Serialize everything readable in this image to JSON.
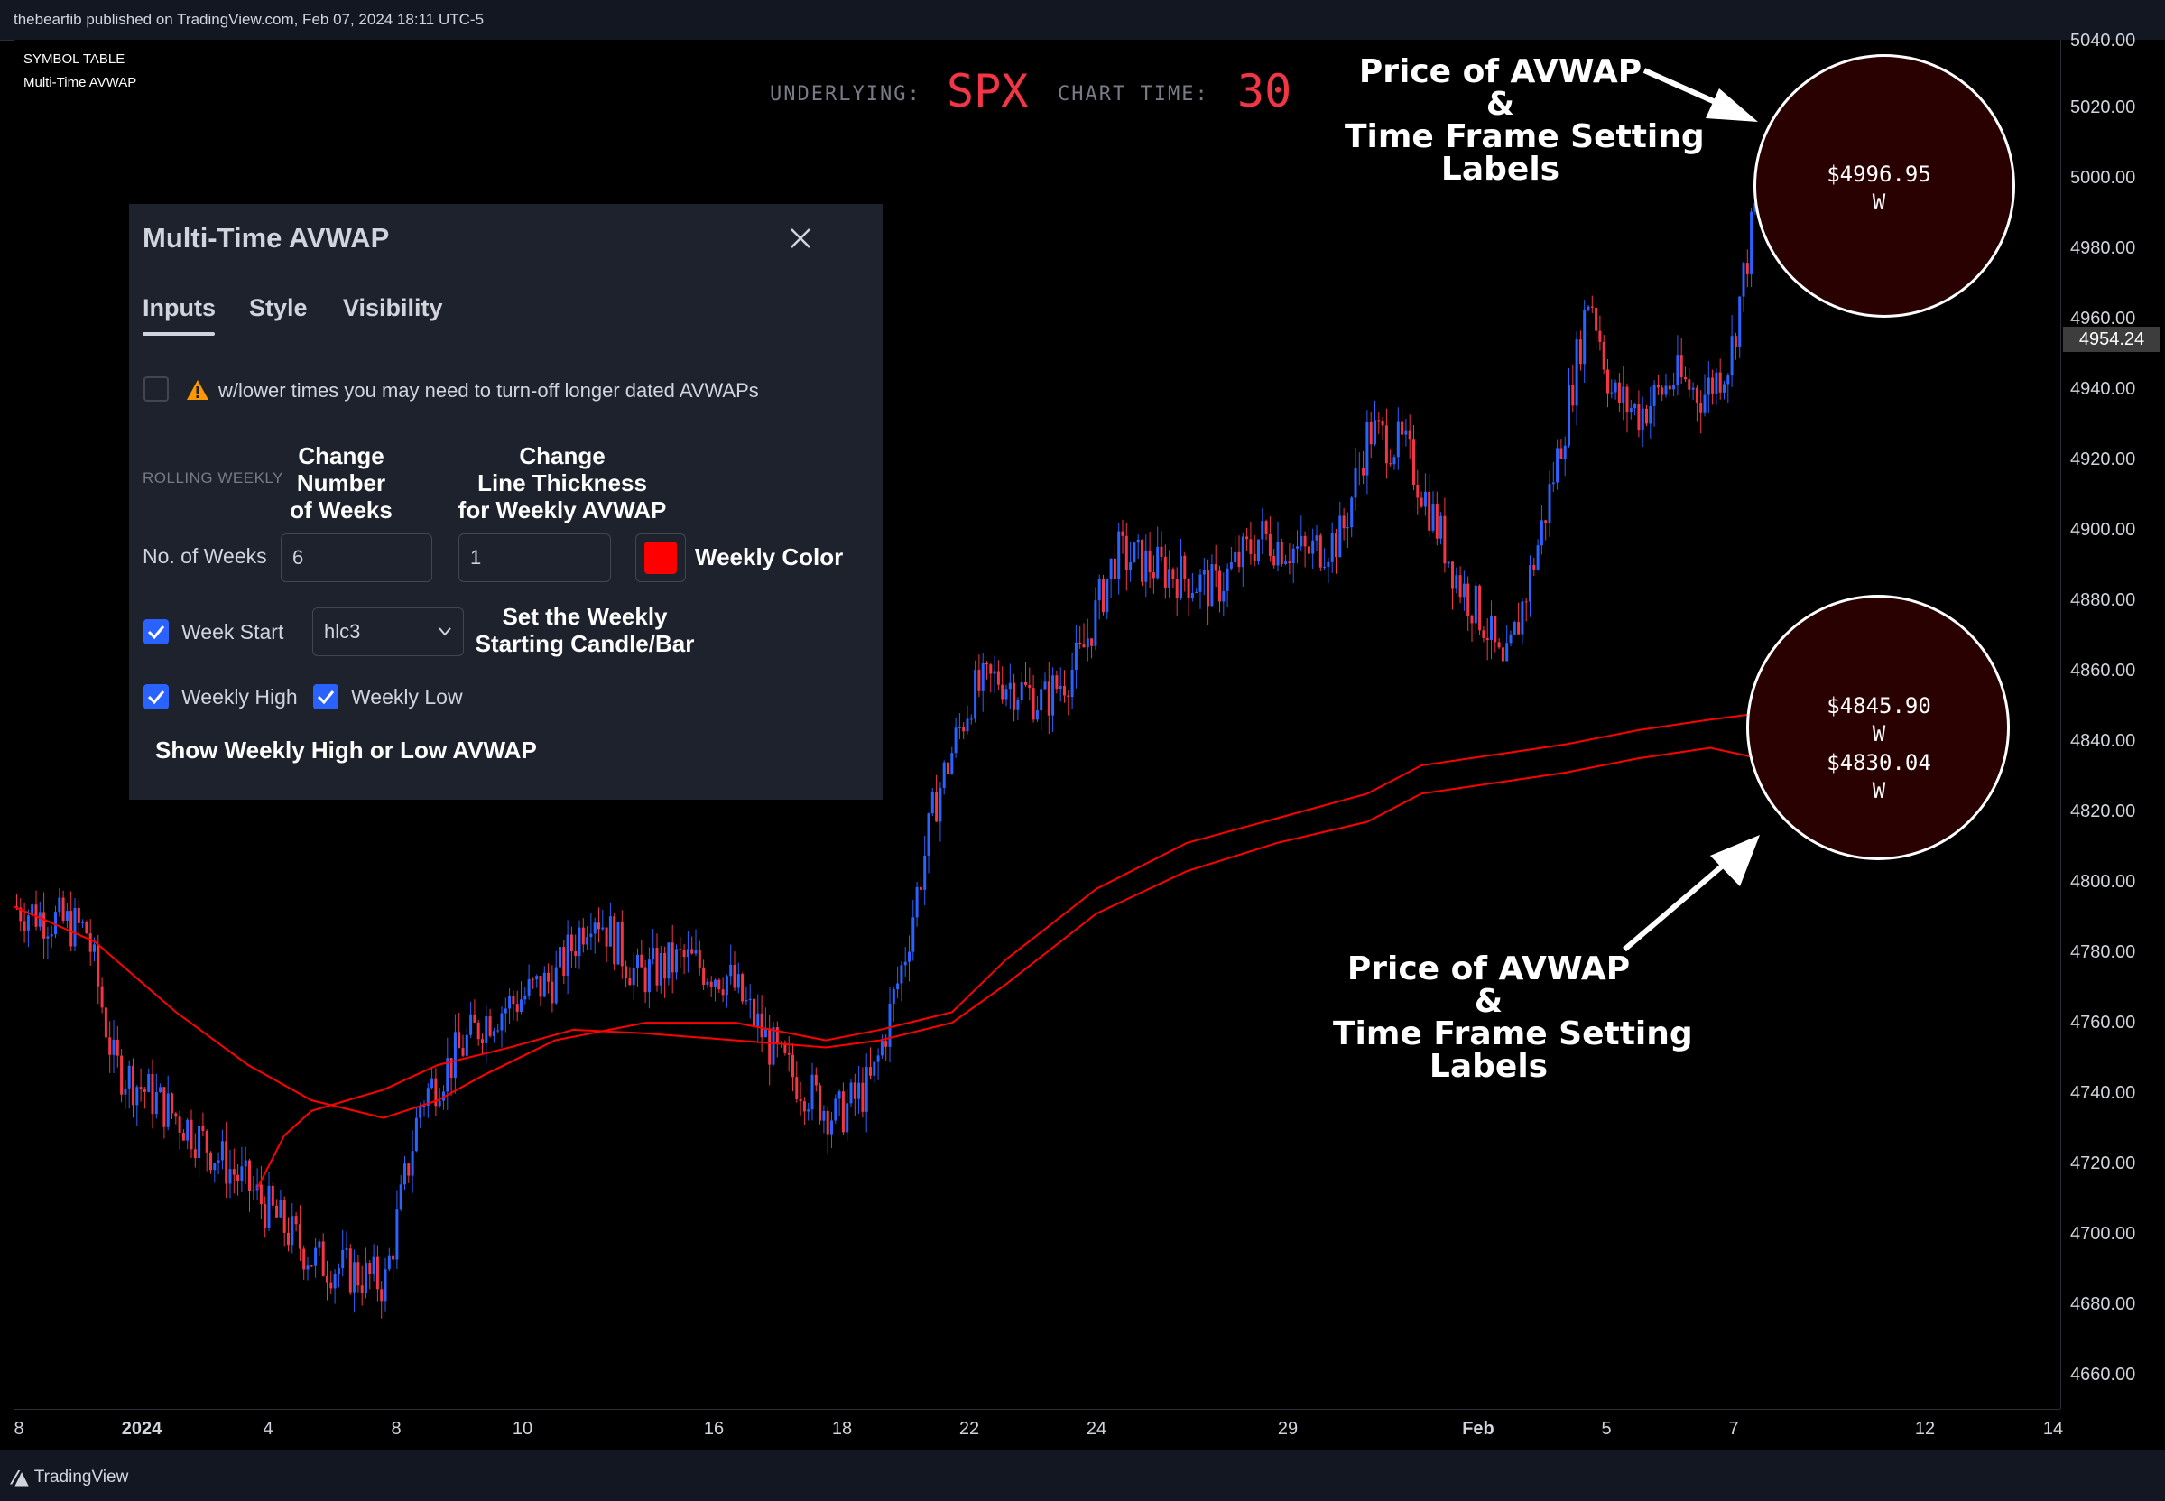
{
  "publish_line": "thebearfib published on TradingView.com, Feb 07, 2024 18:11 UTC-5",
  "footer": {
    "brand": "TradingView"
  },
  "symbol_table": {
    "title": "SYMBOL TABLE",
    "subtitle": "Multi-Time AVWAP"
  },
  "chart_header": {
    "underlying_label": "UNDERLYING:",
    "underlying_value": "SPX",
    "chart_time_label": "CHART TIME:",
    "chart_time_value": "30"
  },
  "price_scale": {
    "ticks": [
      "5040.00",
      "5020.00",
      "5000.00",
      "4980.00",
      "4960.00",
      "4940.00",
      "4920.00",
      "4900.00",
      "4880.00",
      "4860.00",
      "4840.00",
      "4820.00",
      "4800.00",
      "4780.00",
      "4760.00",
      "4740.00",
      "4720.00",
      "4700.00",
      "4680.00",
      "4660.00"
    ],
    "current_price": "4954.24"
  },
  "time_scale": {
    "ticks": [
      "8",
      "2024",
      "4",
      "8",
      "10",
      "16",
      "18",
      "22",
      "24",
      "29",
      "Feb",
      "5",
      "7",
      "12",
      "14"
    ]
  },
  "dialog": {
    "title": "Multi-Time AVWAP",
    "tabs": [
      "Inputs",
      "Style",
      "Visibility"
    ],
    "active_tab": "Inputs",
    "warning_text": "w/lower times you may need to turn-off longer dated AVWAPs",
    "warning_checked": false,
    "section_label": "ROLLING WEEKLY",
    "weeks_label": "No. of Weeks",
    "weeks_value": "6",
    "thickness_value": "1",
    "color_label": "Weekly Color",
    "color_value": "#ff0000",
    "week_start_label": "Week Start",
    "week_start_checked": true,
    "week_start_source": "hlc3",
    "weekly_high_label": "Weekly High",
    "weekly_high_checked": true,
    "weekly_low_label": "Weekly Low",
    "weekly_low_checked": true
  },
  "annotations": {
    "change_weeks": [
      "Change",
      "Number",
      "of Weeks"
    ],
    "change_thickness": [
      "Change",
      "Line Thickness",
      "for Weekly AVWAP"
    ],
    "set_start": [
      "Set the Weekly",
      "Starting Candle/Bar"
    ],
    "show_high_low": "Show Weekly High or Low AVWAP",
    "price_labels_top": [
      "Price of  AVWAP",
      "&",
      "Time Frame Setting",
      "Labels"
    ],
    "price_labels_bottom": [
      "Price of  AVWAP",
      "&",
      "Time Frame Setting",
      "Labels"
    ]
  },
  "avwap_labels": {
    "top": {
      "price": "$4996.95",
      "tf": "W"
    },
    "bottom_1": {
      "price": "$4845.90",
      "tf": "W"
    },
    "bottom_2": {
      "price": "$4830.04",
      "tf": "W"
    }
  },
  "colors": {
    "up": "#2962ff",
    "down": "#f23645",
    "avwap": "#ff0000",
    "background": "#000000"
  }
}
